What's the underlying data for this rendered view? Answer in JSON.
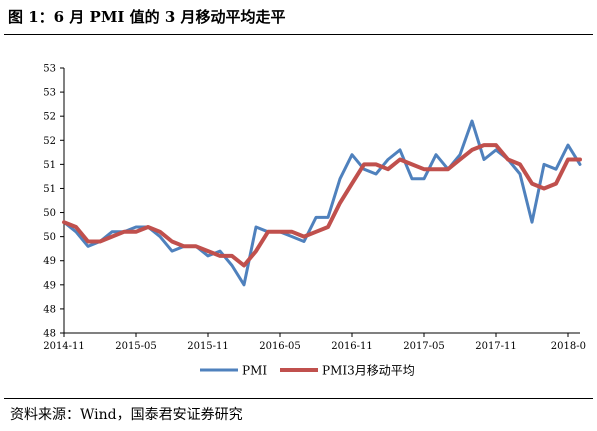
{
  "title": "图 1：6 月 PMI 值的 3 月移动平均走平",
  "source": "资料来源：Wind，国泰君安证券研究",
  "chart_data": {
    "type": "line",
    "y_ticks": [
      "53",
      "53",
      "52",
      "52",
      "51",
      "51",
      "50",
      "50",
      "49",
      "49",
      "48",
      "48"
    ],
    "ylim": [
      48,
      53.5
    ],
    "x_tick_labels": [
      "2014-11",
      "2015-05",
      "2015-11",
      "2016-05",
      "2016-11",
      "2017-05",
      "2017-11",
      "2018-0"
    ],
    "x": [
      "2014-11",
      "2014-12",
      "2015-01",
      "2015-02",
      "2015-03",
      "2015-04",
      "2015-05",
      "2015-06",
      "2015-07",
      "2015-08",
      "2015-09",
      "2015-10",
      "2015-11",
      "2015-12",
      "2016-01",
      "2016-02",
      "2016-03",
      "2016-04",
      "2016-05",
      "2016-06",
      "2016-07",
      "2016-08",
      "2016-09",
      "2016-10",
      "2016-11",
      "2016-12",
      "2017-01",
      "2017-02",
      "2017-03",
      "2017-04",
      "2017-05",
      "2017-06",
      "2017-07",
      "2017-08",
      "2017-09",
      "2017-10",
      "2017-11",
      "2017-12",
      "2018-01",
      "2018-02",
      "2018-03",
      "2018-04",
      "2018-05",
      "2018-06"
    ],
    "series": [
      {
        "name": "PMI",
        "color": "#4f81bd",
        "values": [
          50.3,
          50.1,
          49.8,
          49.9,
          50.1,
          50.1,
          50.2,
          50.2,
          50.0,
          49.7,
          49.8,
          49.8,
          49.6,
          49.7,
          49.4,
          49.0,
          50.2,
          50.1,
          50.1,
          50.0,
          49.9,
          50.4,
          50.4,
          51.2,
          51.7,
          51.4,
          51.3,
          51.6,
          51.8,
          51.2,
          51.2,
          51.7,
          51.4,
          51.7,
          52.4,
          51.6,
          51.8,
          51.6,
          51.3,
          50.3,
          51.5,
          51.4,
          51.9,
          51.5
        ],
        "legend": "PMI"
      },
      {
        "name": "PMI3月移动平均",
        "color": "#c0504d",
        "values": [
          50.3,
          50.2,
          49.9,
          49.9,
          50.0,
          50.1,
          50.1,
          50.2,
          50.1,
          49.9,
          49.8,
          49.8,
          49.7,
          49.6,
          49.6,
          49.4,
          49.7,
          50.1,
          50.1,
          50.1,
          50.0,
          50.1,
          50.2,
          50.7,
          51.1,
          51.5,
          51.5,
          51.4,
          51.6,
          51.5,
          51.4,
          51.4,
          51.4,
          51.6,
          51.8,
          51.9,
          51.9,
          51.6,
          51.5,
          51.1,
          51.0,
          51.1,
          51.6,
          51.6
        ],
        "legend": "PMI3月移动平均"
      }
    ]
  }
}
